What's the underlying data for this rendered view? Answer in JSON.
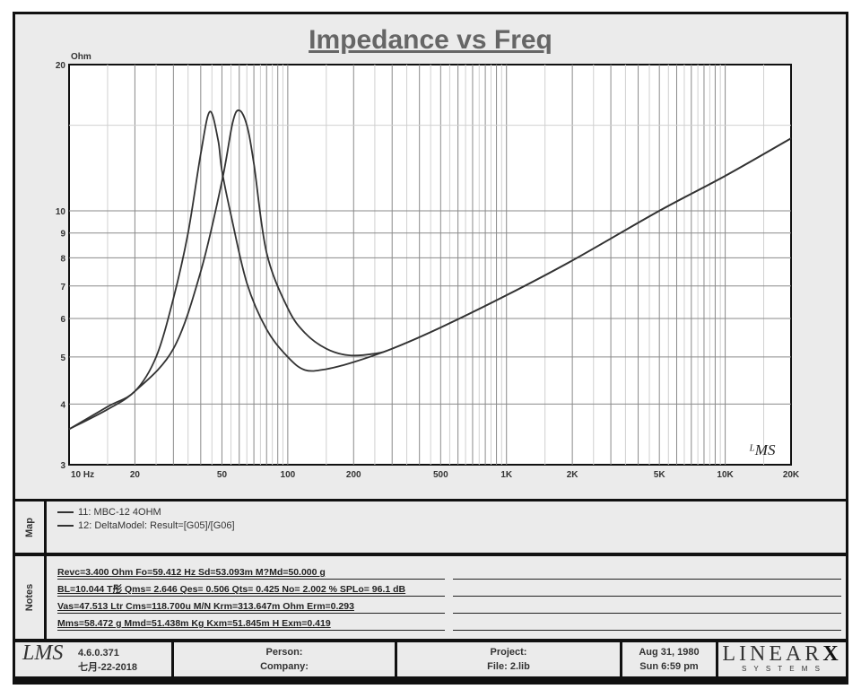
{
  "chart_data": {
    "type": "line",
    "title": "Impedance vs Freq",
    "ylabel": "Ohm",
    "xscale": "log",
    "yscale": "log",
    "xlim": [
      10,
      20000
    ],
    "ylim": [
      3,
      20
    ],
    "grid": true,
    "x_ticks": [
      {
        "v": 10,
        "label": "10  Hz"
      },
      {
        "v": 20,
        "label": "20"
      },
      {
        "v": 50,
        "label": "50"
      },
      {
        "v": 100,
        "label": "100"
      },
      {
        "v": 200,
        "label": "200"
      },
      {
        "v": 500,
        "label": "500"
      },
      {
        "v": 1000,
        "label": "1K"
      },
      {
        "v": 2000,
        "label": "2K"
      },
      {
        "v": 5000,
        "label": "5K"
      },
      {
        "v": 10000,
        "label": "10K"
      },
      {
        "v": 20000,
        "label": "20K"
      }
    ],
    "y_ticks": [
      {
        "v": 3,
        "label": "3"
      },
      {
        "v": 4,
        "label": "4"
      },
      {
        "v": 5,
        "label": "5"
      },
      {
        "v": 6,
        "label": "6"
      },
      {
        "v": 7,
        "label": "7"
      },
      {
        "v": 8,
        "label": "8"
      },
      {
        "v": 9,
        "label": "9"
      },
      {
        "v": 10,
        "label": "10"
      },
      {
        "v": 20,
        "label": "20"
      }
    ],
    "series": [
      {
        "name": "11: MBC-12  4OHM",
        "color": "#333333",
        "x": [
          10,
          15,
          20,
          25,
          30,
          35,
          40,
          44,
          48,
          50,
          55,
          65,
          80,
          100,
          120,
          150,
          200,
          300,
          500,
          1000,
          2000,
          5000,
          10000,
          20000
        ],
        "y": [
          3.55,
          3.95,
          4.25,
          5.0,
          6.6,
          9.0,
          13.1,
          16.0,
          14.0,
          12.1,
          9.8,
          7.1,
          5.7,
          5.0,
          4.7,
          4.72,
          4.88,
          5.2,
          5.75,
          6.7,
          7.9,
          10.0,
          11.8,
          14.1
        ]
      },
      {
        "name": "12: DeltaModel: Result=[G05]/[G06]",
        "color": "#333333",
        "x": [
          10,
          15,
          20,
          30,
          40,
          50,
          56,
          60,
          65,
          70,
          80,
          100,
          120,
          150,
          190,
          250,
          300,
          500,
          1000,
          2000,
          5000,
          10000,
          20000
        ],
        "y": [
          3.55,
          3.9,
          4.25,
          5.2,
          7.5,
          11.5,
          15.2,
          16.1,
          15.0,
          12.5,
          8.2,
          6.3,
          5.6,
          5.2,
          5.04,
          5.08,
          5.2,
          5.75,
          6.7,
          7.9,
          10.0,
          11.8,
          14.1
        ]
      }
    ],
    "watermark": "LMS"
  },
  "map": {
    "label": "Map",
    "items": [
      "11: MBC-12  4OHM",
      "12: DeltaModel: Result=[G05]/[G06]"
    ]
  },
  "notes": {
    "label": "Notes",
    "lines": [
      "Revc=3.400 Ohm  Fo=59.412 Hz  Sd=53.093m  M?Md=50.000 g",
      "BL=10.044 T彤  Qms= 2.646  Qes= 0.506  Qts= 0.425  No= 2.002 %  SPLo= 96.1 dB",
      "Vas=47.513 Ltr  Cms=118.700u M/N  Krm=313.647m Ohm  Erm=0.293",
      "Mms=58.472 g  Mmd=51.438m Kg  Kxm=51.845m H  Exm=0.419"
    ]
  },
  "footer": {
    "logo": "LMS",
    "version": "4.6.0.371",
    "build_date": "七月-22-2018",
    "person": "Person:",
    "company": "Company:",
    "project": "Project:",
    "file": "File: 2.lib",
    "date": "Aug 31, 1980",
    "time": "Sun  6:59 pm",
    "brand": "LINEAR",
    "brand_x": "X",
    "brand_sub": "S Y S T E M S"
  }
}
